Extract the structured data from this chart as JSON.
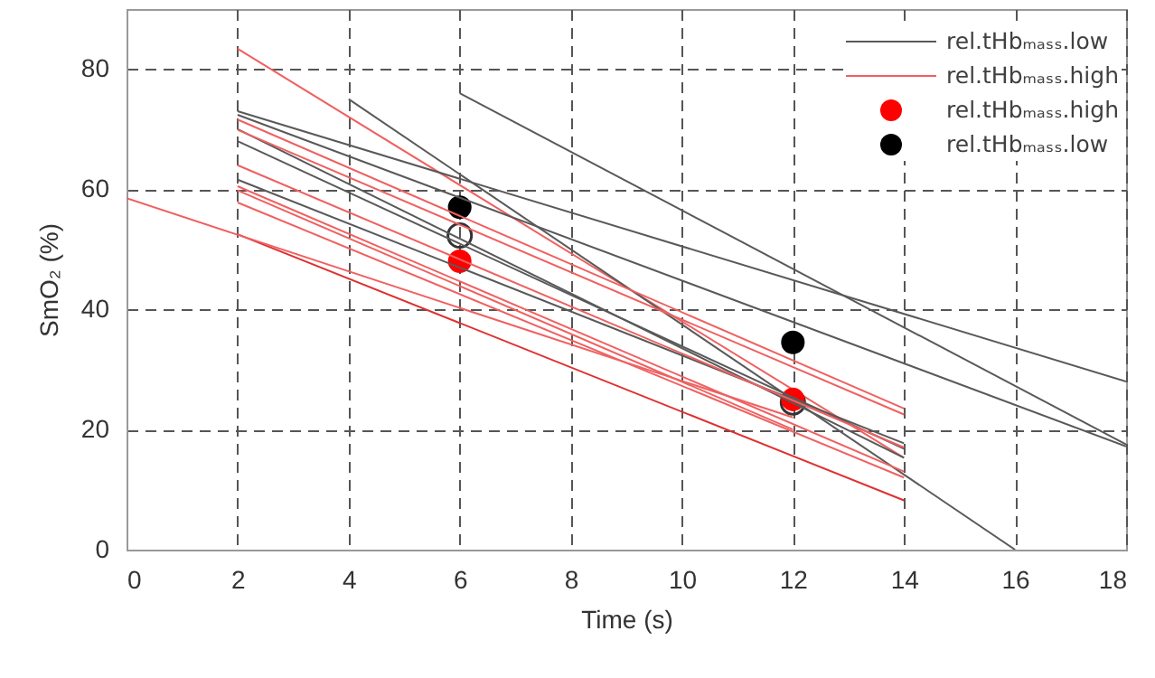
{
  "chart_data": {
    "type": "line",
    "xlabel": "Time (s)",
    "ylabel": "SmO₂ (%)",
    "xlim": [
      0,
      18
    ],
    "ylim": [
      0,
      90
    ],
    "xticks": [
      0,
      2,
      4,
      6,
      8,
      10,
      12,
      14,
      16,
      18
    ],
    "yticks": [
      0,
      20,
      40,
      60,
      80
    ],
    "grid": true,
    "legend": "top right",
    "series": [
      {
        "name": "rel.tHbₘₐₛₛ.low",
        "color": "#595959",
        "x": [
          6,
          18
        ],
        "values": [
          76,
          17.5
        ]
      },
      {
        "name": "rel.tHbₘₐₛₛ.high",
        "color": "#f06060",
        "x": [
          2,
          14
        ],
        "values": [
          83.4,
          15.3
        ]
      },
      {
        "type": "scatter",
        "color": "#333333",
        "x": [
          6,
          12
        ],
        "values": [
          52.3,
          24.5
        ]
      },
      {
        "type": "scatter",
        "name": "rel.tHbₘₐₛₛ.high",
        "color": "#ff0000",
        "x": [
          6,
          12
        ],
        "values": [
          48,
          25
        ]
      },
      {
        "type": "scatter",
        "name": "rel.tHbₘₐₛₛ.low",
        "color": "#000000",
        "x": [
          6,
          12
        ],
        "values": [
          57,
          34.5
        ]
      },
      {
        "color": "#595959",
        "x": [
          4,
          16
        ],
        "values": [
          75,
          0
        ]
      },
      {
        "color": "#595959",
        "x": [
          2,
          18
        ],
        "values": [
          73,
          28
        ]
      },
      {
        "color": "#595959",
        "x": [
          2,
          18
        ],
        "values": [
          72.4,
          17.2
        ]
      },
      {
        "color": "#595959",
        "x": [
          2,
          14
        ],
        "values": [
          68,
          16.8
        ]
      },
      {
        "color": "#595959",
        "x": [
          2,
          14
        ],
        "values": [
          61.6,
          17.7
        ]
      },
      {
        "color": "#595959",
        "x": [
          2,
          14
        ],
        "values": [
          70,
          15.3
        ]
      },
      {
        "color": "#f06060",
        "x": [
          2,
          14
        ],
        "values": [
          71.6,
          23.5
        ]
      },
      {
        "color": "#f06060",
        "x": [
          2,
          14
        ],
        "values": [
          69.9,
          22.5
        ]
      },
      {
        "color": "#f06060",
        "x": [
          2,
          14
        ],
        "values": [
          64,
          17
        ]
      },
      {
        "color": "#f06060",
        "x": [
          2,
          14
        ],
        "values": [
          60.5,
          13
        ]
      },
      {
        "color": "#f06060",
        "x": [
          2,
          12
        ],
        "values": [
          59.8,
          20
        ]
      },
      {
        "color": "#f06060",
        "x": [
          2,
          14
        ],
        "values": [
          57.8,
          12
        ]
      },
      {
        "color": "#e03030",
        "x": [
          2,
          14
        ],
        "values": [
          52.5,
          8.2
        ]
      },
      {
        "color": "#f06060",
        "x": [
          0,
          12
        ],
        "values": [
          58.5,
          22
        ]
      }
    ]
  }
}
